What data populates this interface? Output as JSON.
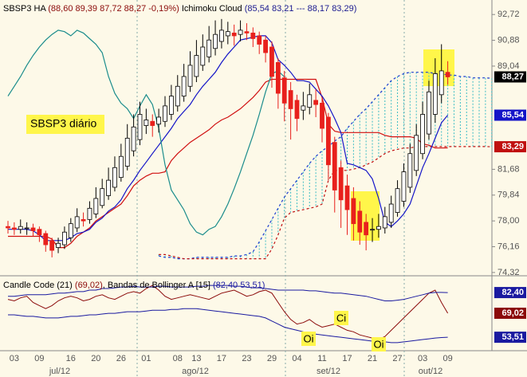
{
  "chart_data": [
    {
      "type": "candlestick",
      "header": {
        "symbol": "SBSP3 HA",
        "ohlc_text": "(88,60  89,39  87,72  88,27  -0,19%)",
        "indicator": "Ichimoku Cloud",
        "indicator_text": "(85,54  83,21  ---  88,17  83,29)"
      },
      "annotation": "SBSP3 diário",
      "categories": [
        null,
        "03",
        null,
        null,
        null,
        "09",
        null,
        null,
        null,
        null,
        "16",
        null,
        null,
        null,
        "20",
        null,
        null,
        null,
        "26",
        null,
        null,
        null,
        "01",
        null,
        null,
        null,
        null,
        "08",
        null,
        null,
        "13",
        null,
        null,
        null,
        "17",
        null,
        null,
        null,
        "23",
        null,
        null,
        null,
        "29",
        null,
        null,
        null,
        "04",
        null,
        null,
        null,
        "11",
        null,
        null,
        null,
        "17",
        null,
        null,
        null,
        "21",
        null,
        null,
        null,
        "27",
        null,
        null,
        null,
        "03",
        null,
        null,
        null,
        "09",
        null,
        null,
        null,
        null,
        null,
        null,
        null
      ],
      "months": [
        "jul/12",
        "ago/12",
        "set/12",
        "out/12"
      ],
      "open": [
        77.6,
        77.5,
        77.4,
        77.5,
        77.5,
        77.4,
        77.1,
        76.6,
        76.1,
        76.3,
        76.8,
        77.5,
        78.1,
        78.1,
        78.5,
        79.1,
        79.8,
        80.4,
        81.1,
        81.9,
        83.0,
        83.8,
        84.8,
        85.1,
        84.9,
        85.1,
        85.6,
        86.2,
        86.9,
        87.6,
        88.3,
        89.1,
        89.7,
        90.3,
        90.8,
        91.2,
        91.4,
        91.3,
        91.5,
        91.4,
        91.2,
        90.9,
        90.4,
        89.3,
        88.2,
        87.3,
        86.6,
        85.9,
        86.1,
        86.6,
        86.4,
        85.4,
        83.6,
        81.8,
        80.5,
        79.6,
        78.7,
        77.9,
        77.4,
        77.4,
        77.5,
        77.9,
        78.6,
        79.4,
        80.4,
        81.6,
        82.8,
        84.2,
        85.6,
        87.0,
        88.6,
        null,
        null,
        null,
        null,
        null,
        null,
        null
      ],
      "high": [
        78.0,
        77.9,
        78.1,
        77.9,
        77.8,
        77.6,
        77.3,
        76.8,
        76.8,
        77.6,
        78.2,
        78.9,
        78.6,
        79.4,
        80.4,
        81.0,
        81.8,
        82.6,
        83.5,
        84.9,
        85.6,
        86.5,
        86.0,
        85.6,
        86.0,
        86.9,
        87.7,
        88.4,
        89.2,
        90.1,
        90.9,
        91.3,
        91.9,
        92.3,
        92.4,
        92.2,
        92.0,
        92.3,
        92.1,
        91.8,
        91.5,
        91.2,
        90.8,
        89.6,
        88.7,
        87.9,
        87.0,
        87.2,
        87.8,
        87.4,
        86.8,
        85.7,
        84.0,
        82.3,
        81.3,
        80.4,
        79.4,
        78.5,
        78.2,
        78.5,
        79.0,
        79.8,
        80.9,
        82.1,
        83.5,
        84.9,
        86.5,
        88.0,
        89.6,
        90.6,
        89.39,
        null,
        null,
        null,
        null,
        null,
        null,
        null
      ],
      "low": [
        77.1,
        77.0,
        77.1,
        77.0,
        76.9,
        76.5,
        75.8,
        75.4,
        75.7,
        76.0,
        76.5,
        77.2,
        77.6,
        77.8,
        78.2,
        78.9,
        79.5,
        80.1,
        80.8,
        81.6,
        82.6,
        83.4,
        84.2,
        84.0,
        84.3,
        84.7,
        85.2,
        85.8,
        86.5,
        87.2,
        87.9,
        88.7,
        89.3,
        89.8,
        90.3,
        90.6,
        90.5,
        90.8,
        90.9,
        90.4,
        89.9,
        89.3,
        87.5,
        86.0,
        85.1,
        83.8,
        84.4,
        85.2,
        85.6,
        85.4,
        83.6,
        80.9,
        78.6,
        77.5,
        77.0,
        76.6,
        76.3,
        75.9,
        76.5,
        76.8,
        77.1,
        77.5,
        78.3,
        79.0,
        80.0,
        81.2,
        82.4,
        83.8,
        85.0,
        86.4,
        87.72,
        null,
        null,
        null,
        null,
        null,
        null,
        null
      ],
      "close": [
        77.5,
        77.4,
        77.6,
        77.5,
        77.3,
        77.0,
        76.3,
        75.9,
        76.4,
        77.2,
        77.8,
        78.3,
        78.0,
        78.9,
        79.6,
        80.3,
        80.9,
        81.8,
        82.6,
        83.9,
        84.7,
        85.6,
        85.2,
        84.8,
        85.4,
        86.2,
        86.9,
        87.6,
        88.3,
        89.1,
        89.8,
        90.4,
        90.9,
        91.3,
        91.6,
        91.5,
        91.2,
        91.6,
        91.4,
        91.0,
        90.6,
        90.0,
        88.3,
        87.1,
        86.4,
        86.0,
        85.3,
        86.2,
        87.0,
        86.3,
        84.6,
        82.0,
        80.2,
        79.5,
        78.8,
        77.8,
        77.2,
        77.0,
        77.4,
        77.6,
        78.3,
        79.2,
        80.3,
        81.5,
        82.8,
        84.1,
        85.6,
        87.2,
        88.5,
        88.7,
        88.27,
        null,
        null,
        null,
        null,
        null,
        null,
        null
      ],
      "up_color": "#ffffff",
      "down_color": "#e8201c",
      "last_label": "88,27",
      "series": [
        {
          "color": "#1414c8",
          "dash": false,
          "last_label": "85,54",
          "values": [
            77.4,
            77.4,
            77.4,
            77.4,
            77.3,
            77.0,
            76.6,
            76.6,
            76.6,
            76.6,
            76.8,
            77.1,
            77.2,
            77.4,
            77.9,
            78.2,
            78.7,
            79.0,
            79.5,
            80.3,
            80.9,
            81.6,
            82.2,
            82.8,
            83.4,
            84.0,
            84.6,
            85.3,
            85.8,
            86.3,
            87.0,
            87.6,
            88.1,
            88.6,
            89.3,
            89.9,
            90.4,
            90.9,
            91.0,
            91.1,
            91.2,
            91.2,
            90.7,
            89.5,
            89.1,
            88.6,
            88.0,
            88.0,
            87.9,
            87.4,
            86.9,
            86.2,
            85.3,
            84.3,
            82.1,
            82.0,
            81.8,
            81.6,
            81.0,
            79.6,
            77.9,
            77.6,
            78.0,
            78.5,
            79.2,
            80.5,
            81.8,
            82.8,
            83.9,
            85.0,
            85.54,
            null,
            null,
            null,
            null,
            null,
            null,
            null
          ]
        },
        {
          "color": "#d01010",
          "dash": false,
          "values": [
            76.9,
            76.9,
            76.9,
            76.9,
            76.9,
            76.9,
            76.9,
            76.7,
            76.1,
            76.1,
            76.4,
            76.9,
            77.2,
            77.5,
            78.0,
            78.3,
            78.6,
            78.9,
            79.2,
            79.8,
            80.5,
            80.9,
            81.2,
            81.4,
            81.4,
            81.5,
            82.3,
            82.8,
            83.2,
            83.6,
            83.9,
            84.2,
            84.5,
            84.9,
            85.2,
            85.4,
            85.7,
            86.0,
            86.4,
            86.8,
            87.3,
            87.9,
            88.1,
            88.1,
            88.1,
            88.1,
            88.1,
            88.1,
            88.1,
            88.1,
            86.8,
            84.9,
            84.4,
            84.3,
            84.3,
            84.3,
            84.3,
            84.3,
            84.3,
            84.3,
            84.1,
            84.0,
            84.0,
            84.0,
            84.0,
            83.9,
            83.5,
            83.4,
            83.2,
            83.2,
            83.21,
            null,
            null,
            null,
            null,
            null,
            null,
            null
          ]
        },
        {
          "color": "#1a8c8c",
          "dash": false,
          "values": [
            86.9,
            87.6,
            88.3,
            89.1,
            89.8,
            90.4,
            90.9,
            91.3,
            91.6,
            91.5,
            91.2,
            91.6,
            91.4,
            91.0,
            90.6,
            90.0,
            88.3,
            87.1,
            86.4,
            86.0,
            85.3,
            86.2,
            87.0,
            86.3,
            84.6,
            82.0,
            80.2,
            79.5,
            78.8,
            77.8,
            77.2,
            77.0,
            77.4,
            77.6,
            78.3,
            79.2,
            80.3,
            81.5,
            82.8,
            84.1,
            85.6,
            87.2,
            88.5,
            88.7,
            88.27,
            null,
            null,
            null,
            null,
            null,
            null,
            null,
            null,
            null,
            null,
            null,
            null,
            null,
            null,
            null,
            null,
            null,
            null,
            null,
            null,
            null,
            null,
            null,
            null,
            null,
            null,
            null,
            null,
            null,
            null,
            null,
            null,
            null
          ]
        },
        {
          "color": "#1a3cd0",
          "dash": true,
          "values": [
            null,
            null,
            null,
            null,
            null,
            null,
            null,
            null,
            null,
            null,
            null,
            null,
            null,
            null,
            null,
            null,
            null,
            null,
            null,
            null,
            null,
            null,
            null,
            null,
            75.5,
            75.4,
            75.4,
            75.3,
            75.3,
            75.3,
            75.4,
            75.4,
            75.4,
            75.4,
            75.4,
            75.4,
            75.5,
            75.5,
            75.6,
            75.8,
            76.5,
            77.3,
            78.1,
            78.9,
            79.7,
            80.3,
            80.9,
            81.5,
            82.1,
            82.6,
            83.0,
            83.3,
            83.7,
            84.0,
            84.6,
            85.1,
            85.6,
            86.0,
            86.5,
            87.0,
            87.5,
            88.0,
            88.3,
            88.5,
            88.6,
            88.6,
            88.6,
            88.6,
            88.5,
            88.5,
            88.4,
            88.4,
            88.3,
            88.3,
            88.2,
            88.2,
            88.2,
            88.17
          ]
        },
        {
          "color": "#c01010",
          "dash": true,
          "last_label": "83,29",
          "values": [
            null,
            null,
            null,
            null,
            null,
            null,
            null,
            null,
            null,
            null,
            null,
            null,
            null,
            null,
            null,
            null,
            null,
            null,
            null,
            null,
            null,
            null,
            null,
            null,
            75.6,
            75.6,
            75.5,
            75.4,
            75.3,
            75.3,
            75.3,
            75.3,
            75.3,
            75.3,
            75.3,
            75.3,
            75.3,
            75.3,
            75.3,
            75.3,
            75.3,
            75.3,
            76.0,
            77.0,
            78.2,
            78.6,
            78.7,
            78.8,
            78.9,
            79.0,
            79.2,
            80.9,
            81.6,
            81.6,
            81.6,
            81.7,
            81.8,
            82.0,
            82.2,
            82.5,
            82.8,
            83.0,
            83.1,
            83.2,
            83.2,
            83.3,
            83.3,
            83.3,
            83.3,
            83.3,
            83.3,
            83.3,
            83.3,
            83.3,
            83.3,
            83.3,
            83.3,
            83.29
          ]
        }
      ],
      "cloud_color": "#3cbcc4",
      "ylim": [
        74.2,
        93.3
      ],
      "yticks": [
        {
          "value": 92.72,
          "label": "92,72"
        },
        {
          "value": 90.88,
          "label": "90,88"
        },
        {
          "value": 89.04,
          "label": "89,04"
        },
        {
          "value": 81.68,
          "label": "81,68"
        },
        {
          "value": 79.84,
          "label": "79,84"
        },
        {
          "value": 78,
          "label": "78,00"
        },
        {
          "value": 76.16,
          "label": "76,16"
        },
        {
          "value": 74.32,
          "label": "74,32"
        }
      ]
    },
    {
      "type": "line",
      "title": "Candle Code (21)",
      "title_values": "(69,02)",
      "subtitle": ", Bandas de Bollinger A [15]",
      "subtitle_values": "(82,40  53,51)",
      "annotations": [
        "Ci",
        "Oi",
        "Oi"
      ],
      "series": [
        {
          "color": "#8b0a0a",
          "last_label": "69,02",
          "values": [
            78,
            77,
            79,
            80,
            76,
            74,
            72,
            74,
            77,
            79,
            80,
            79,
            77,
            78,
            80,
            81,
            79,
            78,
            80,
            82,
            83,
            82,
            85,
            87,
            84,
            80,
            78,
            79,
            80,
            81,
            80,
            79,
            78,
            80,
            82,
            83,
            84,
            82,
            80,
            81,
            83,
            84,
            82,
            76,
            70,
            65,
            62,
            63,
            65,
            62,
            60,
            61,
            62,
            60,
            58,
            57,
            55,
            54,
            53,
            52,
            54,
            58,
            62,
            66,
            70,
            74,
            78,
            82,
            84,
            76,
            69.02,
            null,
            null,
            null,
            null,
            null,
            null,
            null
          ]
        },
        {
          "color": "#1a1aa0",
          "last_label": "82,40",
          "values": [
            80,
            80,
            80.5,
            81,
            81,
            81,
            81,
            81.5,
            82,
            82,
            82.5,
            83,
            83,
            84,
            84,
            85,
            85,
            85.5,
            86,
            86,
            86.5,
            86,
            86,
            86,
            86.5,
            86.5,
            86,
            86,
            86,
            86,
            86.5,
            86.5,
            87,
            87,
            87,
            87,
            86.5,
            86.5,
            86,
            85.5,
            85.5,
            85,
            84.5,
            84,
            84,
            84,
            84,
            84,
            83.5,
            83.5,
            83,
            82.5,
            82,
            82,
            81.5,
            81,
            80.5,
            80,
            79,
            78,
            77,
            77,
            77.5,
            78,
            79,
            80,
            81,
            82,
            82.5,
            82.5,
            82.4,
            null,
            null,
            null,
            null,
            null,
            null,
            null
          ]
        },
        {
          "color": "#1a1aa0",
          "last_label": "53,51",
          "values": [
            68,
            68,
            67.5,
            67,
            67,
            66.5,
            66,
            66,
            66,
            66.5,
            67,
            67,
            67.5,
            68,
            68,
            68.5,
            69,
            69,
            69.5,
            70,
            70,
            70,
            70.5,
            71,
            71,
            71,
            71.5,
            71.5,
            72,
            72,
            72,
            71.5,
            71,
            70.5,
            70,
            69.5,
            69,
            68.5,
            68,
            67.5,
            67,
            66,
            64,
            62,
            60,
            59,
            58,
            57,
            56,
            55.5,
            55,
            54.5,
            54,
            53.5,
            53,
            52.5,
            52,
            51.5,
            51,
            51,
            50.5,
            50,
            50,
            50.5,
            51,
            51.5,
            52,
            52.5,
            53,
            53.3,
            53.51,
            null,
            null,
            null,
            null,
            null,
            null,
            null
          ]
        }
      ],
      "ylim": [
        44.8,
        91.2
      ]
    }
  ]
}
